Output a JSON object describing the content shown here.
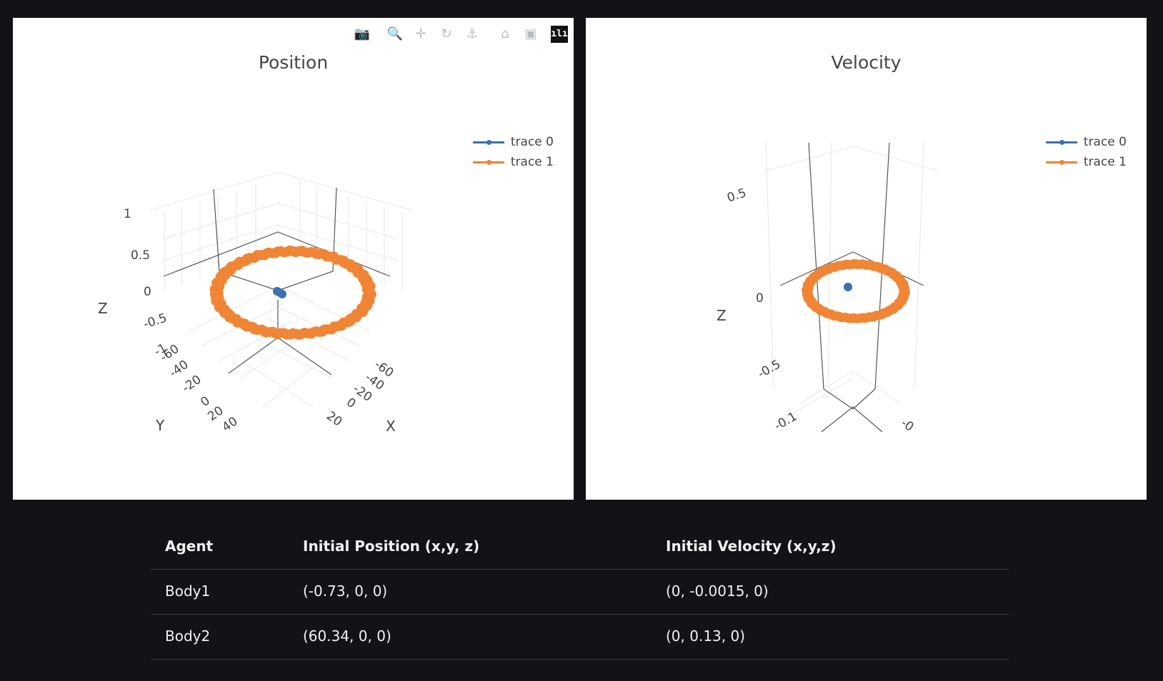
{
  "toolbar": {
    "icons": [
      "camera-icon",
      "zoom-icon",
      "pan-icon",
      "orbit-rotation-icon",
      "turntable-rotation-icon",
      "home-icon",
      "camera-reset-icon",
      "plotly-logo-icon"
    ]
  },
  "colors": {
    "trace0": "#3a70ae",
    "trace1": "#ef8535",
    "background": "#121316"
  },
  "chart_data": [
    {
      "type": "scatter3d",
      "title": "Position",
      "legend": [
        "trace 0",
        "trace 1"
      ],
      "legend_position": "top-right",
      "axes": {
        "x": {
          "title": "X",
          "ticks": [
            "-60",
            "-40",
            "-20",
            "0",
            "20"
          ]
        },
        "y": {
          "title": "Y",
          "ticks": [
            "-60",
            "-40",
            "-20",
            "0",
            "20",
            "40"
          ]
        },
        "z": {
          "title": "Z",
          "ticks": [
            "-1",
            "-0.5",
            "0",
            "0.5",
            "1"
          ]
        }
      },
      "series": [
        {
          "name": "trace 0",
          "description_points": [
            [
              -0.73,
              0,
              0
            ]
          ]
        },
        {
          "name": "trace 1",
          "orbit_radius": 60.34
        }
      ]
    },
    {
      "type": "scatter3d",
      "title": "Velocity",
      "legend": [
        "trace 0",
        "trace 1"
      ],
      "legend_position": "top-right",
      "axes": {
        "x": {
          "title": "",
          "ticks": [
            "-0"
          ]
        },
        "y": {
          "title": "",
          "ticks": [
            "-0.1"
          ]
        },
        "z": {
          "title": "Z",
          "ticks": [
            "-0.5",
            "0",
            "0.5"
          ]
        }
      },
      "series": [
        {
          "name": "trace 0",
          "description_points": [
            [
              0,
              -0.0015,
              0
            ]
          ]
        },
        {
          "name": "trace 1",
          "orbit_radius": 0.13
        }
      ]
    }
  ],
  "table": {
    "headers": [
      "Agent",
      "Initial Position (x,y, z)",
      "Initial Velocity (x,y,z)"
    ],
    "rows": [
      [
        "Body1",
        "(-0.73, 0, 0)",
        "(0, -0.0015, 0)"
      ],
      [
        "Body2",
        "(60.34, 0, 0)",
        "(0, 0.13, 0)"
      ]
    ]
  }
}
